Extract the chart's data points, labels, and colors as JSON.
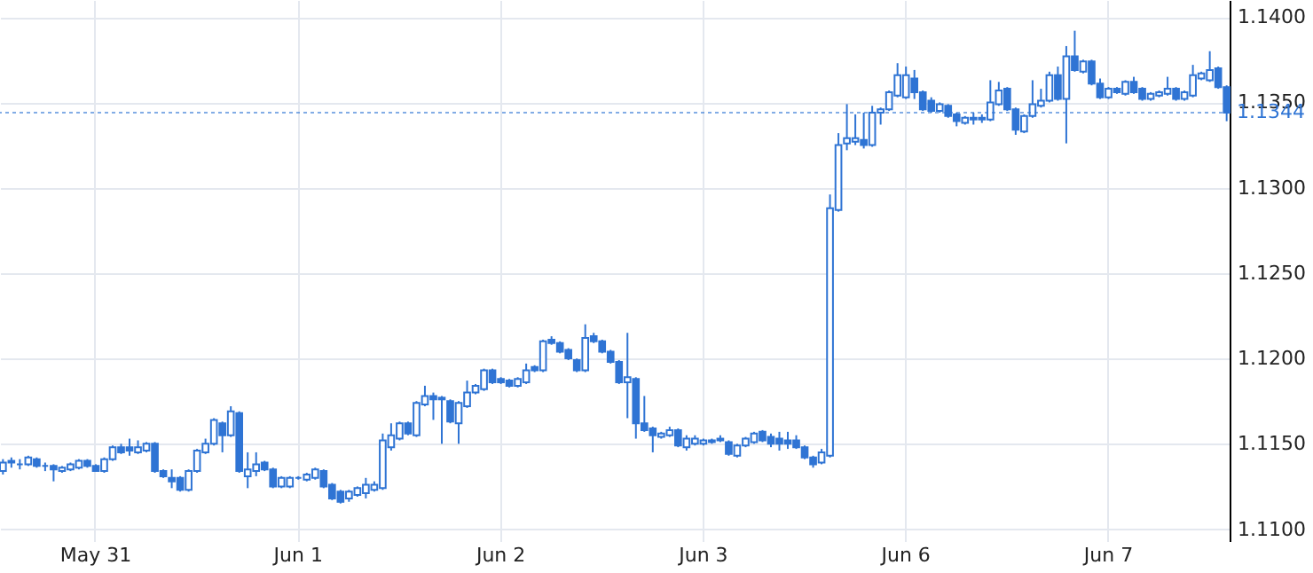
{
  "chart_data": {
    "type": "candlestick",
    "categories": [
      null,
      null,
      null,
      null,
      null,
      null,
      null,
      null,
      null,
      null,
      null,
      "May 31",
      null,
      null,
      null,
      null,
      null,
      null,
      null,
      null,
      null,
      null,
      null,
      null,
      null,
      null,
      null,
      null,
      null,
      null,
      null,
      null,
      null,
      null,
      null,
      "Jun 1",
      null,
      null,
      null,
      null,
      null,
      null,
      null,
      null,
      null,
      null,
      null,
      null,
      null,
      null,
      null,
      null,
      null,
      null,
      null,
      null,
      null,
      null,
      null,
      "Jun 2",
      null,
      null,
      null,
      null,
      null,
      null,
      null,
      null,
      null,
      null,
      null,
      null,
      null,
      null,
      null,
      null,
      null,
      null,
      null,
      null,
      null,
      null,
      null,
      "Jun 3",
      null,
      null,
      null,
      null,
      null,
      null,
      null,
      null,
      null,
      null,
      null,
      null,
      null,
      null,
      null,
      null,
      null,
      null,
      null,
      null,
      null,
      null,
      null,
      "Jun 6",
      null,
      null,
      null,
      null,
      null,
      null,
      null,
      null,
      null,
      null,
      null,
      null,
      null,
      null,
      null,
      null,
      null,
      null,
      null,
      null,
      null,
      null,
      null,
      "Jun 7",
      null,
      null,
      null,
      null,
      null,
      null,
      null,
      null,
      null,
      null,
      null,
      null,
      null,
      null
    ],
    "color": "#2f74d4",
    "ohlc": [
      [
        1.1134,
        1.1141,
        1.1132,
        1.1139
      ],
      [
        1.1139,
        1.1142,
        1.1136,
        1.114
      ],
      [
        1.1138,
        1.1141,
        1.1135,
        1.1138
      ],
      [
        1.1138,
        1.1143,
        1.1137,
        1.1142
      ],
      [
        1.1141,
        1.1142,
        1.1136,
        1.1137
      ],
      [
        1.1137,
        1.1139,
        1.1134,
        1.1137
      ],
      [
        1.1137,
        1.1138,
        1.1128,
        1.1135
      ],
      [
        1.1134,
        1.1137,
        1.1133,
        1.1136
      ],
      [
        1.1135,
        1.1139,
        1.1134,
        1.1138
      ],
      [
        1.1136,
        1.1141,
        1.1135,
        1.114
      ],
      [
        1.114,
        1.1141,
        1.1136,
        1.1137
      ],
      [
        1.1137,
        1.1138,
        1.1134,
        1.1134
      ],
      [
        1.1134,
        1.1142,
        1.1133,
        1.1141
      ],
      [
        1.1141,
        1.1149,
        1.114,
        1.1148
      ],
      [
        1.1148,
        1.115,
        1.1144,
        1.1145
      ],
      [
        1.1148,
        1.1153,
        1.1143,
        1.1146
      ],
      [
        1.1145,
        1.1152,
        1.1144,
        1.1148
      ],
      [
        1.1146,
        1.1151,
        1.1145,
        1.115
      ],
      [
        1.115,
        1.1151,
        1.1133,
        1.1134
      ],
      [
        1.1134,
        1.1135,
        1.113,
        1.1131
      ],
      [
        1.113,
        1.1135,
        1.1124,
        1.1128
      ],
      [
        1.113,
        1.1131,
        1.1122,
        1.1123
      ],
      [
        1.1123,
        1.1135,
        1.1122,
        1.1134
      ],
      [
        1.1134,
        1.1147,
        1.1133,
        1.1146
      ],
      [
        1.1145,
        1.1153,
        1.1144,
        1.115
      ],
      [
        1.115,
        1.1165,
        1.1149,
        1.1164
      ],
      [
        1.1162,
        1.1163,
        1.1145,
        1.1155
      ],
      [
        1.1155,
        1.1172,
        1.1154,
        1.1169
      ],
      [
        1.1168,
        1.1169,
        1.1133,
        1.1134
      ],
      [
        1.1131,
        1.1145,
        1.1124,
        1.1135
      ],
      [
        1.1134,
        1.1145,
        1.1131,
        1.1138
      ],
      [
        1.1139,
        1.114,
        1.1134,
        1.1135
      ],
      [
        1.1135,
        1.1136,
        1.1124,
        1.1125
      ],
      [
        1.1125,
        1.1131,
        1.1124,
        1.113
      ],
      [
        1.1125,
        1.1131,
        1.1124,
        1.113
      ],
      [
        1.113,
        1.1131,
        1.1129,
        1.113
      ],
      [
        1.1129,
        1.1133,
        1.1128,
        1.1132
      ],
      [
        1.113,
        1.1136,
        1.1129,
        1.1135
      ],
      [
        1.1134,
        1.1135,
        1.1124,
        1.1125
      ],
      [
        1.1126,
        1.1127,
        1.1117,
        1.1118
      ],
      [
        1.1122,
        1.1123,
        1.1115,
        1.1116
      ],
      [
        1.1118,
        1.1123,
        1.1116,
        1.1122
      ],
      [
        1.112,
        1.1125,
        1.1119,
        1.1124
      ],
      [
        1.1121,
        1.113,
        1.1118,
        1.1126
      ],
      [
        1.1123,
        1.1128,
        1.1122,
        1.1126
      ],
      [
        1.1124,
        1.1156,
        1.1123,
        1.1152
      ],
      [
        1.1148,
        1.1162,
        1.1146,
        1.1155
      ],
      [
        1.1153,
        1.1163,
        1.1152,
        1.1162
      ],
      [
        1.1162,
        1.1163,
        1.1155,
        1.1156
      ],
      [
        1.1155,
        1.1175,
        1.1154,
        1.1174
      ],
      [
        1.1173,
        1.1184,
        1.1172,
        1.1178
      ],
      [
        1.1178,
        1.118,
        1.1164,
        1.1176
      ],
      [
        1.1177,
        1.1178,
        1.115,
        1.1176
      ],
      [
        1.1175,
        1.1176,
        1.1162,
        1.1163
      ],
      [
        1.1162,
        1.1175,
        1.115,
        1.1174
      ],
      [
        1.1172,
        1.1187,
        1.1171,
        1.118
      ],
      [
        1.118,
        1.1185,
        1.1179,
        1.1184
      ],
      [
        1.1182,
        1.1194,
        1.1181,
        1.1193
      ],
      [
        1.1193,
        1.1194,
        1.1185,
        1.1186
      ],
      [
        1.1188,
        1.1189,
        1.1185,
        1.1186
      ],
      [
        1.1187,
        1.1188,
        1.1183,
        1.1184
      ],
      [
        1.1184,
        1.1189,
        1.1183,
        1.1188
      ],
      [
        1.1186,
        1.1197,
        1.1185,
        1.1193
      ],
      [
        1.1195,
        1.1196,
        1.1192,
        1.1193
      ],
      [
        1.1193,
        1.1211,
        1.1192,
        1.121
      ],
      [
        1.1211,
        1.1213,
        1.1208,
        1.1209
      ],
      [
        1.1209,
        1.121,
        1.1203,
        1.1204
      ],
      [
        1.1205,
        1.1206,
        1.1199,
        1.12
      ],
      [
        1.1199,
        1.12,
        1.1192,
        1.1193
      ],
      [
        1.1193,
        1.122,
        1.1192,
        1.1212
      ],
      [
        1.1213,
        1.1215,
        1.1209,
        1.121
      ],
      [
        1.121,
        1.1211,
        1.1203,
        1.1204
      ],
      [
        1.1204,
        1.1205,
        1.1197,
        1.1198
      ],
      [
        1.1198,
        1.1199,
        1.1185,
        1.1186
      ],
      [
        1.1186,
        1.1215,
        1.1165,
        1.1189
      ],
      [
        1.1188,
        1.1189,
        1.1153,
        1.1162
      ],
      [
        1.1162,
        1.1178,
        1.1157,
        1.1158
      ],
      [
        1.1159,
        1.116,
        1.1145,
        1.1155
      ],
      [
        1.1154,
        1.1157,
        1.1153,
        1.1156
      ],
      [
        1.1155,
        1.116,
        1.1154,
        1.1158
      ],
      [
        1.1158,
        1.1159,
        1.1148,
        1.1149
      ],
      [
        1.1148,
        1.1155,
        1.1146,
        1.1153
      ],
      [
        1.115,
        1.1155,
        1.1149,
        1.1153
      ],
      [
        1.115,
        1.1153,
        1.1149,
        1.1152
      ],
      [
        1.1152,
        1.1153,
        1.115,
        1.1151
      ],
      [
        1.1153,
        1.1155,
        1.1151,
        1.1152
      ],
      [
        1.1151,
        1.1152,
        1.1143,
        1.1144
      ],
      [
        1.1143,
        1.115,
        1.1142,
        1.1149
      ],
      [
        1.1149,
        1.1154,
        1.1148,
        1.1153
      ],
      [
        1.1151,
        1.1157,
        1.115,
        1.1156
      ],
      [
        1.1157,
        1.1158,
        1.1151,
        1.1152
      ],
      [
        1.1154,
        1.1156,
        1.1148,
        1.115
      ],
      [
        1.1153,
        1.1157,
        1.1146,
        1.115
      ],
      [
        1.1152,
        1.1157,
        1.1147,
        1.115
      ],
      [
        1.1152,
        1.1155,
        1.1147,
        1.1148
      ],
      [
        1.1148,
        1.1149,
        1.1141,
        1.1142
      ],
      [
        1.1142,
        1.1143,
        1.1136,
        1.1138
      ],
      [
        1.1139,
        1.1147,
        1.1138,
        1.1145
      ],
      [
        1.1143,
        1.1296,
        1.1142,
        1.1288
      ],
      [
        1.1287,
        1.1332,
        1.1286,
        1.1325
      ],
      [
        1.1326,
        1.1349,
        1.1322,
        1.1329
      ],
      [
        1.1327,
        1.1343,
        1.1325,
        1.1329
      ],
      [
        1.1328,
        1.1344,
        1.1323,
        1.1325
      ],
      [
        1.1325,
        1.1348,
        1.1324,
        1.1344
      ],
      [
        1.1344,
        1.1347,
        1.1337,
        1.1346
      ],
      [
        1.1346,
        1.1357,
        1.1345,
        1.1356
      ],
      [
        1.1354,
        1.1373,
        1.1353,
        1.1366
      ],
      [
        1.1353,
        1.1371,
        1.1352,
        1.1366
      ],
      [
        1.1364,
        1.1369,
        1.1352,
        1.1356
      ],
      [
        1.1356,
        1.1357,
        1.1345,
        1.1346
      ],
      [
        1.1351,
        1.1353,
        1.1344,
        1.1345
      ],
      [
        1.1345,
        1.135,
        1.1344,
        1.1349
      ],
      [
        1.1348,
        1.1349,
        1.1341,
        1.1342
      ],
      [
        1.1343,
        1.1344,
        1.1336,
        1.1339
      ],
      [
        1.1338,
        1.1342,
        1.1337,
        1.1341
      ],
      [
        1.134,
        1.1344,
        1.1337,
        1.1341
      ],
      [
        1.134,
        1.1343,
        1.1338,
        1.1341
      ],
      [
        1.134,
        1.1363,
        1.1339,
        1.135
      ],
      [
        1.1349,
        1.1362,
        1.1348,
        1.1357
      ],
      [
        1.1358,
        1.1359,
        1.1345,
        1.1346
      ],
      [
        1.1346,
        1.1347,
        1.1331,
        1.1334
      ],
      [
        1.1333,
        1.1343,
        1.1332,
        1.1342
      ],
      [
        1.1342,
        1.1363,
        1.1341,
        1.1349
      ],
      [
        1.1348,
        1.1358,
        1.1347,
        1.1351
      ],
      [
        1.1351,
        1.1368,
        1.135,
        1.1366
      ],
      [
        1.1366,
        1.1371,
        1.1351,
        1.1352
      ],
      [
        1.1352,
        1.1383,
        1.1326,
        1.1377
      ],
      [
        1.1377,
        1.1392,
        1.1368,
        1.1369
      ],
      [
        1.1368,
        1.1375,
        1.1367,
        1.1374
      ],
      [
        1.1374,
        1.1375,
        1.136,
        1.1361
      ],
      [
        1.1361,
        1.1364,
        1.1352,
        1.1353
      ],
      [
        1.1353,
        1.1359,
        1.1352,
        1.1358
      ],
      [
        1.1358,
        1.1359,
        1.1355,
        1.1356
      ],
      [
        1.1355,
        1.1363,
        1.1354,
        1.1362
      ],
      [
        1.1362,
        1.1365,
        1.1355,
        1.1356
      ],
      [
        1.1358,
        1.1359,
        1.1351,
        1.1352
      ],
      [
        1.1352,
        1.1356,
        1.1351,
        1.1355
      ],
      [
        1.1354,
        1.1357,
        1.1353,
        1.1356
      ],
      [
        1.1355,
        1.1365,
        1.1354,
        1.1358
      ],
      [
        1.1358,
        1.1359,
        1.1351,
        1.1352
      ],
      [
        1.1352,
        1.1357,
        1.1351,
        1.1356
      ],
      [
        1.1354,
        1.1372,
        1.1353,
        1.1366
      ],
      [
        1.1364,
        1.1368,
        1.1363,
        1.1367
      ],
      [
        1.1363,
        1.138,
        1.1362,
        1.1369
      ],
      [
        1.137,
        1.1371,
        1.1358,
        1.1359
      ],
      [
        1.1359,
        1.136,
        1.1339,
        1.1344
      ]
    ],
    "ylim": [
      1.1093,
      1.141
    ],
    "yticks": [
      {
        "value": 1.11,
        "label": "1.1100"
      },
      {
        "value": 1.115,
        "label": "1.1150"
      },
      {
        "value": 1.12,
        "label": "1.1200"
      },
      {
        "value": 1.125,
        "label": "1.1250"
      },
      {
        "value": 1.13,
        "label": "1.1300"
      },
      {
        "value": 1.135,
        "label": "1.1350"
      },
      {
        "value": 1.14,
        "label": "1.1400"
      }
    ],
    "ref_lines": [
      {
        "axis": "y",
        "value": 1.1344,
        "label": "1.1344",
        "color": "#2f74d4"
      }
    ],
    "grid": true
  }
}
